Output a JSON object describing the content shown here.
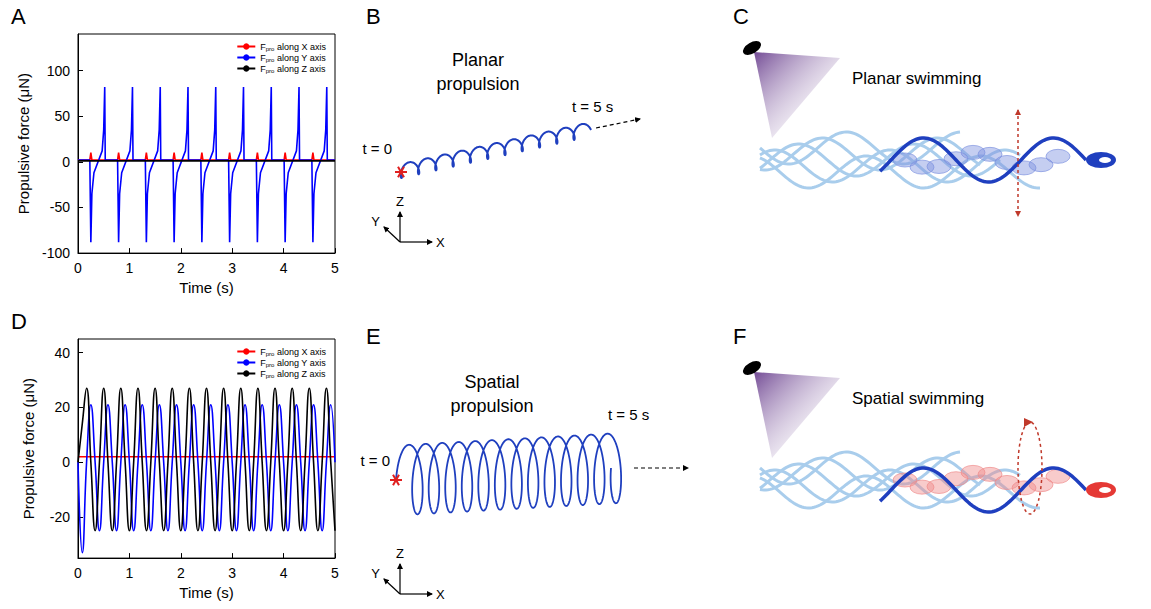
{
  "chart_data": [
    {
      "label": "A",
      "type": "line",
      "xlabel": "Time (s)",
      "ylabel": "Propulsive force (μN)",
      "xlim": [
        0,
        5
      ],
      "xticks": [
        0,
        1,
        2,
        3,
        4,
        5
      ],
      "ylim": [
        -100,
        140
      ],
      "yticks": [
        -100,
        -50,
        0,
        50,
        100
      ],
      "grid": false,
      "legend": "upper right",
      "x": [
        0,
        0.23,
        0.25,
        0.27,
        0.31,
        0.47,
        0.5,
        0.52,
        0.53,
        0.77,
        0.79,
        0.81,
        0.85,
        1.01,
        1.04,
        1.06,
        1.07,
        1.31,
        1.33,
        1.35,
        1.39,
        1.55,
        1.58,
        1.6,
        1.61,
        1.85,
        1.87,
        1.89,
        1.93,
        2.09,
        2.12,
        2.14,
        2.15,
        2.39,
        2.41,
        2.43,
        2.47,
        2.63,
        2.66,
        2.68,
        2.69,
        2.93,
        2.95,
        2.97,
        3.01,
        3.17,
        3.2,
        3.22,
        3.23,
        3.47,
        3.49,
        3.51,
        3.55,
        3.71,
        3.74,
        3.76,
        3.77,
        4.01,
        4.03,
        4.05,
        4.09,
        4.25,
        4.28,
        4.3,
        4.31,
        4.55,
        4.57,
        4.59,
        4.63,
        4.79,
        4.82,
        4.84,
        4.85,
        5
      ],
      "series": [
        {
          "name": "Fpro along X axis",
          "color": "#ff0000",
          "line_style": "solid",
          "values": [
            2,
            2,
            10,
            2,
            2,
            2,
            2,
            2,
            2,
            2,
            10,
            2,
            2,
            2,
            2,
            2,
            2,
            2,
            10,
            2,
            2,
            2,
            2,
            2,
            2,
            2,
            10,
            2,
            2,
            2,
            2,
            2,
            2,
            2,
            10,
            2,
            2,
            2,
            2,
            2,
            2,
            2,
            10,
            2,
            2,
            2,
            2,
            2,
            2,
            2,
            10,
            2,
            2,
            2,
            2,
            2,
            2,
            2,
            10,
            2,
            2,
            2,
            2,
            2,
            2,
            2,
            10,
            2,
            2,
            2,
            2,
            2,
            2,
            2
          ]
        },
        {
          "name": "Fpro along Y axis",
          "color": "#0000ff",
          "line_style": "solid",
          "values": [
            2,
            2,
            -88,
            -35,
            -12,
            12,
            35,
            82,
            2,
            2,
            -88,
            -35,
            -12,
            12,
            35,
            82,
            2,
            2,
            -88,
            -35,
            -12,
            12,
            35,
            82,
            2,
            2,
            -88,
            -35,
            -12,
            12,
            35,
            82,
            2,
            2,
            -88,
            -35,
            -12,
            12,
            35,
            82,
            2,
            2,
            -88,
            -35,
            -12,
            12,
            35,
            82,
            2,
            2,
            -88,
            -35,
            -12,
            12,
            35,
            82,
            2,
            2,
            -88,
            -35,
            -12,
            12,
            35,
            82,
            2,
            2,
            -88,
            -35,
            -12,
            12,
            35,
            82,
            2,
            2
          ]
        },
        {
          "name": "Fpro along Z axis",
          "color": "#000000",
          "line_style": "solid",
          "values": [
            1,
            1,
            1,
            1,
            1,
            1,
            1,
            1,
            1,
            1,
            1,
            1,
            1,
            1,
            1,
            1,
            1,
            1,
            1,
            1,
            1,
            1,
            1,
            1,
            1,
            1,
            1,
            1,
            1,
            1,
            1,
            1,
            1,
            1,
            1,
            1,
            1,
            1,
            1,
            1,
            1,
            1,
            1,
            1,
            1,
            1,
            1,
            1,
            1,
            1,
            1,
            1,
            1,
            1,
            1,
            1,
            1,
            1,
            1,
            1,
            1,
            1,
            1,
            1,
            1,
            1,
            1,
            1,
            1,
            1,
            1,
            1,
            1,
            1
          ]
        }
      ]
    },
    {
      "label": "D",
      "type": "line",
      "xlabel": "Time (s)",
      "ylabel": "Propulsive force (μN)",
      "xlim": [
        0,
        5
      ],
      "xticks": [
        0,
        1,
        2,
        3,
        4,
        5
      ],
      "ylim": [
        -35,
        45
      ],
      "yticks": [
        -20,
        0,
        20,
        40
      ],
      "grid": false,
      "legend": "upper right",
      "x": [
        0,
        0.083,
        0.167,
        0.25,
        0.333,
        0.417,
        0.5,
        0.583,
        0.667,
        0.75,
        0.833,
        0.917,
        1,
        1.083,
        1.167,
        1.25,
        1.333,
        1.417,
        1.5,
        1.583,
        1.667,
        1.75,
        1.833,
        1.917,
        2,
        2.083,
        2.167,
        2.25,
        2.333,
        2.417,
        2.5,
        2.583,
        2.667,
        2.75,
        2.833,
        2.917,
        3,
        3.083,
        3.167,
        3.25,
        3.333,
        3.417,
        3.5,
        3.583,
        3.667,
        3.75,
        3.833,
        3.917,
        4,
        4.083,
        4.167,
        4.25,
        4.333,
        4.417,
        4.5,
        4.583,
        4.667,
        4.75,
        4.833,
        4.917,
        5
      ],
      "series": [
        {
          "name": "Fpro along X axis",
          "color": "#ff0000",
          "line_style": "smooth",
          "values": [
            2,
            2,
            2,
            2,
            2,
            2,
            2,
            2,
            2,
            2,
            2,
            2,
            2,
            2,
            2,
            2,
            2,
            2,
            2,
            2,
            2,
            2,
            2,
            2,
            2,
            2,
            2,
            2,
            2,
            2,
            2,
            2,
            2,
            2,
            2,
            2,
            2,
            2,
            2,
            2,
            2,
            2,
            2,
            2,
            2,
            2,
            2,
            2,
            2,
            2,
            2,
            2,
            2,
            2,
            2,
            2,
            2,
            2,
            2,
            2,
            2
          ]
        },
        {
          "name": "Fpro along Y axis",
          "color": "#0000ff",
          "line_style": "smooth",
          "values": [
            0,
            -33,
            0,
            21,
            0,
            -25,
            0,
            21,
            0,
            -25,
            0,
            21,
            0,
            -25,
            0,
            21,
            0,
            -25,
            0,
            21,
            0,
            -25,
            0,
            21,
            0,
            -25,
            0,
            21,
            0,
            -25,
            0,
            21,
            0,
            -25,
            0,
            21,
            0,
            -25,
            0,
            21,
            0,
            -25,
            0,
            21,
            0,
            -25,
            0,
            21,
            0,
            -25,
            0,
            21,
            0,
            -25,
            0,
            21,
            0,
            -25,
            0,
            21,
            0
          ]
        },
        {
          "name": "Fpro along Z axis",
          "color": "#000000",
          "line_style": "smooth",
          "values": [
            0,
            14,
            27,
            0,
            -25,
            0,
            27,
            0,
            -25,
            0,
            27,
            0,
            -25,
            0,
            27,
            0,
            -25,
            0,
            27,
            0,
            -25,
            0,
            27,
            0,
            -25,
            0,
            27,
            0,
            -25,
            0,
            27,
            0,
            -25,
            0,
            27,
            0,
            -25,
            0,
            27,
            0,
            -25,
            0,
            27,
            0,
            -25,
            0,
            27,
            0,
            -25,
            0,
            27,
            0,
            -25,
            0,
            27,
            0,
            -25,
            0,
            27,
            0,
            -25
          ]
        }
      ]
    }
  ],
  "diagrams": [
    {
      "label": "B",
      "title": "Planar propulsion",
      "start": "t = 0",
      "end": "t = 5 s",
      "axes": [
        "X",
        "Y",
        "Z"
      ]
    },
    {
      "label": "C",
      "title": "Planar swimming"
    },
    {
      "label": "E",
      "title": "Spatial propulsion",
      "start": "t = 0",
      "end": "t = 5 s",
      "axes": [
        "X",
        "Y",
        "Z"
      ]
    },
    {
      "label": "F",
      "title": "Spatial swimming"
    }
  ]
}
